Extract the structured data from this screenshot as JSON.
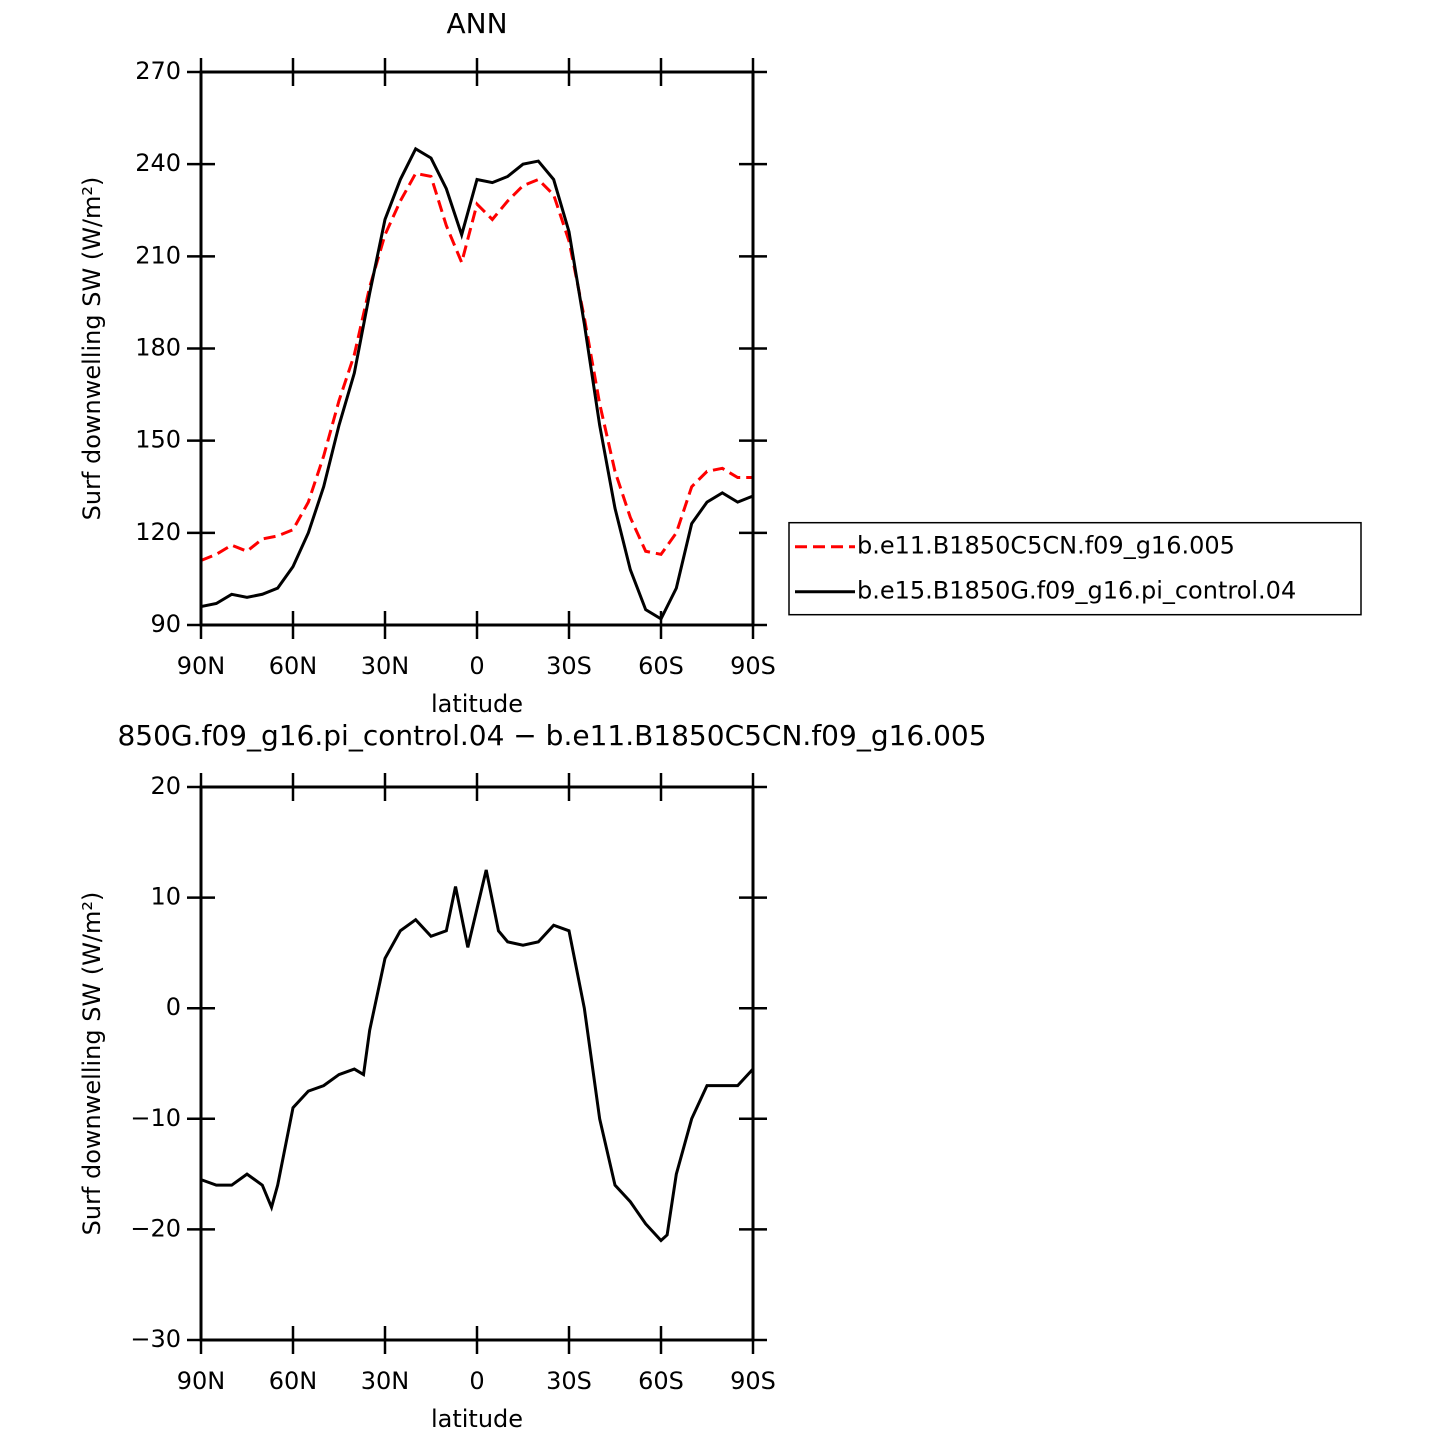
{
  "chart_data": [
    {
      "type": "line",
      "title": "ANN",
      "xlabel": "latitude",
      "ylabel": "Surf downwelling SW (W/m²)",
      "x": [
        90,
        85,
        80,
        75,
        70,
        65,
        60,
        55,
        50,
        45,
        40,
        35,
        30,
        25,
        20,
        15,
        10,
        5,
        0,
        -5,
        -10,
        -15,
        -20,
        -25,
        -30,
        -35,
        -40,
        -45,
        -50,
        -55,
        -60,
        -65,
        -70,
        -75,
        -80,
        -85,
        -90
      ],
      "series": [
        {
          "name": "b.e11.B1850C5CN.f09_g16.005",
          "color": "#ff0000",
          "line_style": "dashed",
          "values": [
            111,
            113,
            116,
            114,
            118,
            119,
            121,
            130,
            145,
            163,
            178,
            200,
            217,
            228,
            237,
            236,
            220,
            208,
            227,
            222,
            228,
            233,
            235,
            230,
            215,
            190,
            162,
            140,
            125,
            114,
            113,
            120,
            135,
            140,
            141,
            138,
            138
          ]
        },
        {
          "name": "b.e15.B1850G.f09_g16.pi_control.04",
          "color": "#000000",
          "line_style": "solid",
          "values": [
            96,
            97,
            100,
            99,
            100,
            102,
            109,
            120,
            135,
            155,
            172,
            198,
            222,
            235,
            245,
            242,
            232,
            217,
            235,
            234,
            236,
            240,
            241,
            235,
            218,
            188,
            155,
            128,
            108,
            95,
            92,
            102,
            123,
            130,
            133,
            130,
            132
          ]
        }
      ],
      "xlim": [
        90,
        -90
      ],
      "xticks": [
        {
          "value": 90,
          "label": "90N"
        },
        {
          "value": 60,
          "label": "60N"
        },
        {
          "value": 30,
          "label": "30N"
        },
        0,
        {
          "value": -30,
          "label": "30S"
        },
        {
          "value": -60,
          "label": "60S"
        },
        {
          "value": -90,
          "label": "90S"
        }
      ],
      "ylim": [
        90,
        270
      ],
      "yticks": [
        90,
        120,
        150,
        180,
        210,
        240,
        270
      ],
      "legend": "right"
    },
    {
      "type": "line",
      "title": "850G.f09_g16.pi_control.04 − b.e11.B1850C5CN.f09_g16.005",
      "xlabel": "latitude",
      "ylabel": "Surf downwelling SW (W/m²)",
      "x": [
        90,
        85,
        80,
        75,
        70,
        67,
        65,
        60,
        55,
        50,
        45,
        40,
        37,
        35,
        30,
        25,
        20,
        15,
        10,
        7,
        3,
        0,
        -3,
        -7,
        -10,
        -15,
        -20,
        -25,
        -30,
        -35,
        -40,
        -45,
        -50,
        -55,
        -60,
        -62,
        -65,
        -70,
        -75,
        -80,
        -85,
        -90
      ],
      "values": [
        -15.5,
        -16,
        -16,
        -15,
        -16,
        -18,
        -16,
        -9,
        -7.5,
        -7,
        -6,
        -5.5,
        -6,
        -2,
        4.5,
        7,
        8,
        6.5,
        7,
        11,
        5.5,
        9,
        12.5,
        7,
        6,
        5.7,
        6,
        7.5,
        7,
        0,
        -10,
        -16,
        -17.5,
        -19.5,
        -21,
        -20.5,
        -15,
        -10,
        -7,
        -7,
        -7,
        -5.5
      ],
      "color": "#000000",
      "xlim": [
        90,
        -90
      ],
      "xticks": [
        {
          "value": 90,
          "label": "90N"
        },
        {
          "value": 60,
          "label": "60N"
        },
        {
          "value": 30,
          "label": "30N"
        },
        0,
        {
          "value": -30,
          "label": "30S"
        },
        {
          "value": -60,
          "label": "60S"
        },
        {
          "value": -90,
          "label": "90S"
        }
      ],
      "ylim": [
        -30,
        20
      ],
      "yticks": [
        {
          "value": -30,
          "label": "−30"
        },
        {
          "value": -20,
          "label": "−20"
        },
        {
          "value": -10,
          "label": "−10"
        },
        0,
        10,
        20
      ]
    }
  ]
}
